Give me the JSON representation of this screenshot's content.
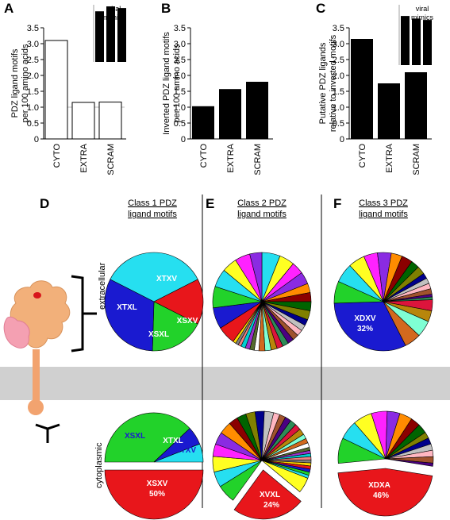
{
  "panels": {
    "A": {
      "letter": "A"
    },
    "B": {
      "letter": "B"
    },
    "C": {
      "letter": "C"
    },
    "D": {
      "letter": "D"
    },
    "E": {
      "letter": "E"
    },
    "F": {
      "letter": "F"
    }
  },
  "chart_data": [
    {
      "id": "A",
      "type": "bar",
      "ylabel": "PDZ ligand motifs per 100 amino acids",
      "categories": [
        "CYTO",
        "EXTRA",
        "SCRAM"
      ],
      "values": [
        3.1,
        1.15,
        1.16
      ],
      "ylim": [
        0,
        3.5
      ],
      "yticks": [
        "0",
        "0.5",
        "1.0",
        "1.5",
        "2.0",
        "2.5",
        "3.0",
        "3.5"
      ],
      "style": "open",
      "inset": {
        "label": "viral mimics",
        "values": [
          3.1,
          3.4,
          3.3
        ]
      }
    },
    {
      "id": "B",
      "type": "bar",
      "ylabel": "Inverted PDZ ligand motifs per 100 amino acids",
      "categories": [
        "CYTO",
        "EXTRA",
        "SCRAM"
      ],
      "values": [
        1.03,
        1.57,
        1.8
      ],
      "ylim": [
        0,
        3.5
      ],
      "yticks": [
        "0",
        "0.5",
        "1.0",
        "1.5",
        "2.0",
        "2.5",
        "3.0",
        "3.5"
      ],
      "style": "solid"
    },
    {
      "id": "C",
      "type": "bar",
      "ylabel": "Putative PDZ ligands relative to inverted motifs",
      "categories": [
        "CYTO",
        "EXTRA",
        "SCRAM"
      ],
      "values": [
        3.15,
        1.75,
        2.1
      ],
      "ylim": [
        0,
        3.5
      ],
      "yticks": [
        "0",
        "0.5",
        "1.0",
        "1.5",
        "2.0",
        "2.5",
        "3.0",
        "3.5"
      ],
      "style": "solid",
      "inset": {
        "label": "viral mimics",
        "values": [
          2.85,
          2.7,
          2.62
        ]
      }
    },
    {
      "id": "D",
      "type": "pie",
      "title": "Class 1 PDZ ligand motifs",
      "pies": [
        {
          "region": "extracellular",
          "slices": [
            {
              "label": "XTXV",
              "value": 35,
              "color": "#26dff0"
            },
            {
              "label": "XSXV",
              "value": 15,
              "color": "#e8161b"
            },
            {
              "label": "XSXL",
              "value": 18,
              "color": "#22d22a"
            },
            {
              "label": "XTXL",
              "value": 32,
              "color": "#1a1ad0"
            }
          ]
        },
        {
          "region": "cytoplasmic",
          "slices": [
            {
              "label": "XSXV 50%",
              "value": 50,
              "color": "#e8161b"
            },
            {
              "label": "XSXL",
              "value": 38,
              "color": "#22d22a"
            },
            {
              "label": "XTXL",
              "value": 6,
              "color": "#1a1ad0"
            },
            {
              "label": "XTXV",
              "value": 6,
              "color": "#26dff0"
            }
          ]
        }
      ]
    },
    {
      "id": "E",
      "type": "pie",
      "title": "Class 2 PDZ ligand motifs",
      "pies": [
        {
          "region": "extracellular",
          "slices": []
        },
        {
          "region": "cytoplasmic",
          "slices": [
            {
              "label": "XVXL 24%",
              "value": 24,
              "color": "#e8161b"
            }
          ]
        }
      ]
    },
    {
      "id": "F",
      "type": "pie",
      "title": "Class 3 PDZ ligand motifs",
      "pies": [
        {
          "region": "extracellular",
          "slices": [
            {
              "label": "XDXV 32%",
              "value": 32,
              "color": "#1a1ad0"
            }
          ]
        },
        {
          "region": "cytoplasmic",
          "slices": [
            {
              "label": "XDXA 46%",
              "value": 46,
              "color": "#e8161b"
            }
          ]
        }
      ]
    }
  ],
  "labels": {
    "extracellular": "extracellular",
    "cytoplasmic": "cytoplasmic",
    "viral_mimics": "viral mimics"
  },
  "palette": [
    "#e8161b",
    "#1a1ad0",
    "#22d22a",
    "#26dff0",
    "#ffff22",
    "#ff22ff",
    "#8a2be2",
    "#ff8c00",
    "#8b0000",
    "#006400",
    "#808000",
    "#00008b",
    "#c0c0c0",
    "#ffb6c1",
    "#a0522d",
    "#4b0082",
    "#2e8b57",
    "#dc143c",
    "#b8860b",
    "#7fffd4",
    "#d2691e",
    "#ffffff",
    "#556b2f",
    "#9932cc",
    "#00ced1",
    "#f08080",
    "#808080",
    "#ffd700"
  ],
  "class2_ext_values": [
    6,
    5,
    4,
    4,
    3,
    3,
    3,
    3,
    2,
    2,
    2,
    2,
    2,
    2,
    2,
    2,
    2,
    2,
    1.5,
    1.5,
    1.5,
    1.5,
    1,
    1,
    1,
    6,
    7,
    7,
    6,
    5,
    5,
    4
  ],
  "class2_cyt_values": [
    6,
    5,
    5,
    4,
    4,
    4,
    3,
    3,
    3,
    3,
    3,
    2,
    2,
    2,
    2,
    2,
    2,
    1.5,
    1.5,
    1.5,
    1,
    1,
    1,
    1,
    1,
    1,
    1,
    1,
    1,
    1,
    5
  ],
  "class3_ext_values": [
    8,
    7,
    6,
    5,
    5,
    4,
    4,
    3,
    3,
    2,
    2,
    2,
    2,
    1,
    1,
    4,
    4,
    6,
    6
  ],
  "class3_cyt_values": [
    8,
    6,
    6,
    5,
    4,
    4,
    3,
    3,
    2,
    2,
    2,
    2,
    2,
    1
  ]
}
